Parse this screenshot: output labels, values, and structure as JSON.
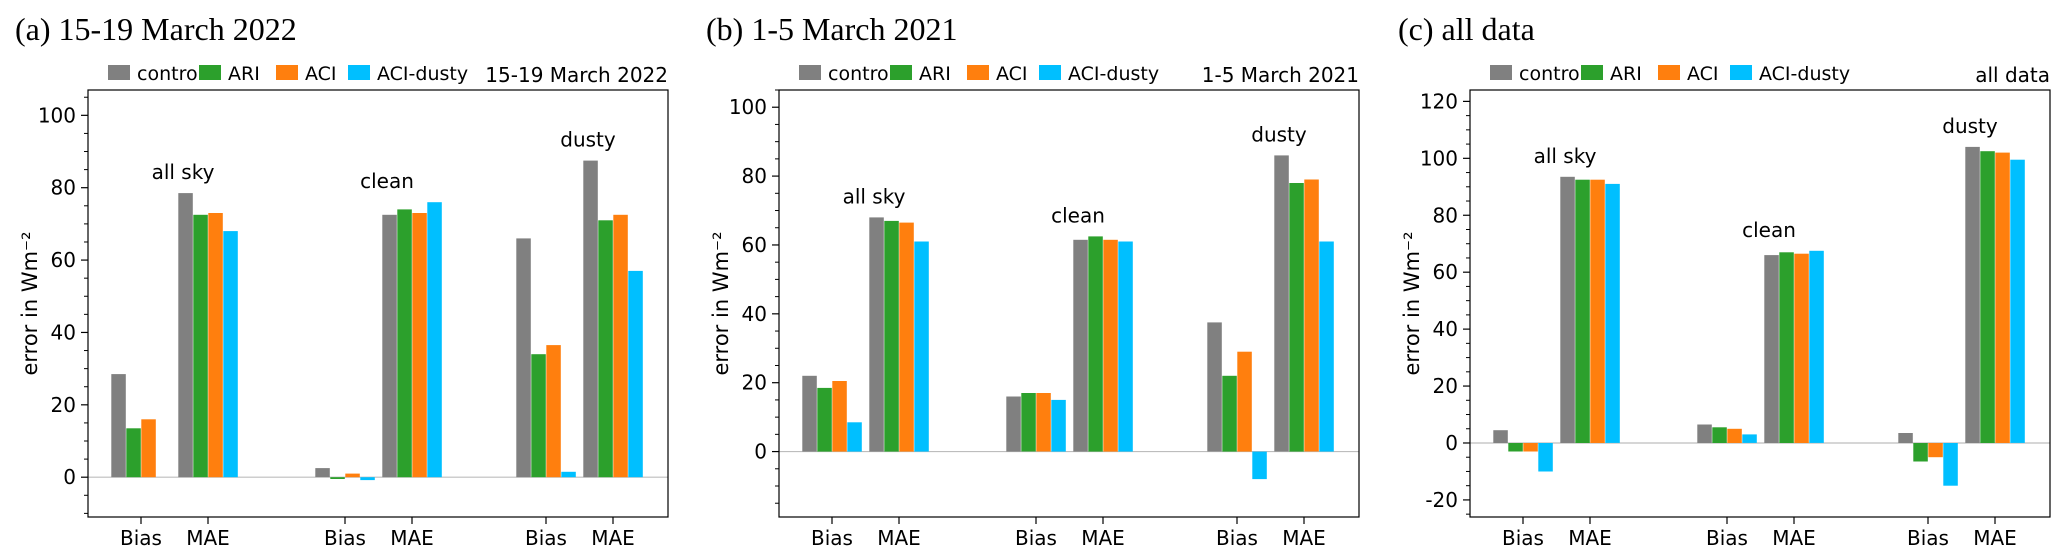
{
  "figure": {
    "colors": {
      "control": "#808080",
      "ARI": "#2ca02c",
      "ACI": "#ff7f0e",
      "ACI-dusty": "#00bfff"
    }
  },
  "chart_data": [
    {
      "type": "bar",
      "panel_title": "(a) 15-19 March 2022",
      "inner_title": "15-19 March 2022",
      "ylabel": "error in Wm⁻²",
      "ylim": [
        -11,
        107
      ],
      "yticks": [
        0,
        20,
        40,
        60,
        80,
        100
      ],
      "legend_position": "top",
      "categories": [
        "Bias",
        "MAE",
        "Bias",
        "MAE",
        "Bias",
        "MAE"
      ],
      "groups": [
        "all sky",
        "clean",
        "dusty"
      ],
      "group_labels": [
        "all sky",
        "clean",
        "dusty"
      ],
      "series": [
        {
          "name": "control",
          "values": [
            28.5,
            78.5,
            2.5,
            72.5,
            66,
            87.5
          ]
        },
        {
          "name": "ARI",
          "values": [
            13.5,
            72.5,
            -0.5,
            74,
            34,
            71
          ]
        },
        {
          "name": "ACI",
          "values": [
            16,
            73,
            1,
            73,
            36.5,
            72.5
          ]
        },
        {
          "name": "ACI-dusty",
          "values": [
            0,
            68,
            -0.8,
            76,
            1.5,
            57
          ]
        }
      ]
    },
    {
      "type": "bar",
      "panel_title": "(b) 1-5 March 2021",
      "inner_title": "1-5 March 2021",
      "ylabel": "error in Wm⁻²",
      "ylim": [
        -19,
        105
      ],
      "yticks": [
        0,
        20,
        40,
        60,
        80,
        100
      ],
      "legend_position": "top",
      "categories": [
        "Bias",
        "MAE",
        "Bias",
        "MAE",
        "Bias",
        "MAE"
      ],
      "groups": [
        "all sky",
        "clean",
        "dusty"
      ],
      "group_labels": [
        "all sky",
        "clean",
        "dusty"
      ],
      "series": [
        {
          "name": "control",
          "values": [
            22,
            68,
            16,
            61.5,
            37.5,
            86
          ]
        },
        {
          "name": "ARI",
          "values": [
            18.5,
            67,
            17,
            62.5,
            22,
            78
          ]
        },
        {
          "name": "ACI",
          "values": [
            20.5,
            66.5,
            17,
            61.5,
            29,
            79
          ]
        },
        {
          "name": "ACI-dusty",
          "values": [
            8.5,
            61,
            15,
            61,
            -8,
            61
          ]
        }
      ]
    },
    {
      "type": "bar",
      "panel_title": "(c) all data",
      "inner_title": "all data",
      "ylabel": "error in Wm⁻²",
      "ylim": [
        -26,
        124
      ],
      "yticks": [
        -20,
        0,
        20,
        40,
        60,
        80,
        100,
        120
      ],
      "legend_position": "top",
      "categories": [
        "Bias",
        "MAE",
        "Bias",
        "MAE",
        "Bias",
        "MAE"
      ],
      "groups": [
        "all sky",
        "clean",
        "dusty"
      ],
      "group_labels": [
        "all sky",
        "clean",
        "dusty"
      ],
      "series": [
        {
          "name": "control",
          "values": [
            4.5,
            93.5,
            6.5,
            66,
            3.5,
            104
          ]
        },
        {
          "name": "ARI",
          "values": [
            -3,
            92.5,
            5.5,
            67,
            -6.5,
            102.5
          ]
        },
        {
          "name": "ACI",
          "values": [
            -3,
            92.5,
            5,
            66.5,
            -5,
            102
          ]
        },
        {
          "name": "ACI-dusty",
          "values": [
            -10,
            91,
            3,
            67.5,
            -15,
            99.5
          ]
        }
      ]
    }
  ]
}
